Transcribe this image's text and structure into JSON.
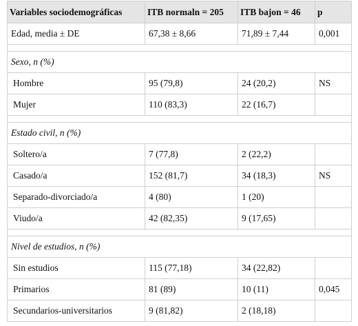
{
  "table": {
    "header": [
      "Variables sociodemográficas",
      "ITB normaln = 205",
      "ITB bajon = 46",
      "p"
    ],
    "first_row": [
      "Edad, media ± DE",
      "67,38 ± 8,66",
      "71,89 ± 7,44",
      "0,001"
    ],
    "sections": [
      {
        "title": "Sexo, n (%)",
        "rows": [
          [
            "Hombre",
            "95 (79,8)",
            "24 (20,2)",
            "NS"
          ],
          [
            "Mujer",
            "110 (83,3)",
            "22 (16,7)"
          ]
        ]
      },
      {
        "title": "Estado civil, n (%)",
        "rows": [
          [
            "Soltero/a",
            "7 (77,8)",
            "2 (22,2)"
          ],
          [
            "Casado/a",
            "152 (81,7)",
            "34 (18,3)",
            "NS"
          ],
          [
            "Separado-divorciado/a",
            "4 (80)",
            "1 (20)"
          ],
          [
            "Viudo/a",
            "42 (82,35)",
            "9 (17,65)"
          ]
        ]
      },
      {
        "title": "Nivel de estudios, n (%)",
        "rows": [
          [
            "Sin estudios",
            "115 (77,18)",
            "34 (22,82)"
          ],
          [
            "Primarios",
            "81 (89)",
            "10 (11)",
            "0,045"
          ],
          [
            "Secundarios-universitarios",
            "9 (81,82)",
            "2 (18,18)"
          ]
        ]
      }
    ]
  }
}
